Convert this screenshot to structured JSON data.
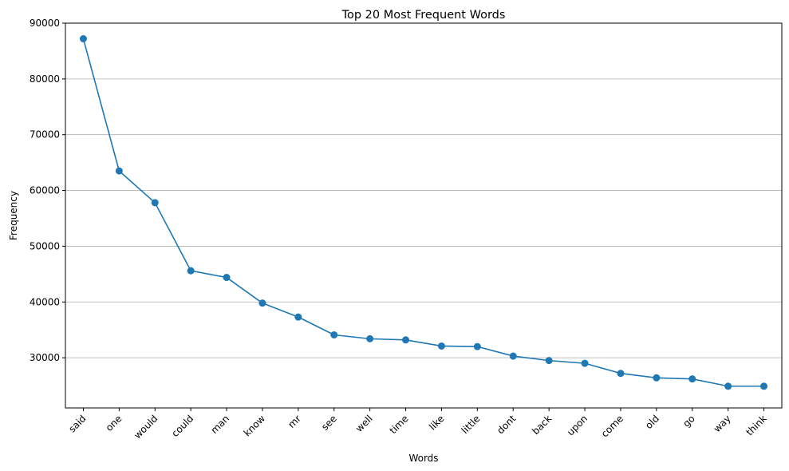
{
  "chart_data": {
    "type": "line",
    "title": "Top 20 Most Frequent Words",
    "xlabel": "Words",
    "ylabel": "Frequency",
    "categories": [
      "said",
      "one",
      "would",
      "could",
      "man",
      "know",
      "mr",
      "see",
      "well",
      "time",
      "like",
      "little",
      "dont",
      "back",
      "upon",
      "come",
      "old",
      "go",
      "way",
      "think"
    ],
    "series": [
      {
        "values": [
          87200,
          63500,
          57800,
          45600,
          44400,
          39800,
          37300,
          34100,
          33400,
          33200,
          32100,
          32000,
          30300,
          29500,
          29000,
          27200,
          26400,
          26200,
          24900,
          24900
        ],
        "color": "#1f77b4",
        "marker": "circle"
      }
    ],
    "ylim": [
      21000,
      90000
    ],
    "yticks": [
      30000,
      40000,
      50000,
      60000,
      70000,
      80000,
      90000
    ],
    "ytick_labels": [
      "30000",
      "40000",
      "50000",
      "60000",
      "70000",
      "80000",
      "90000"
    ],
    "grid": "y",
    "grid_color": "#b0b0b0",
    "x_tick_rotation": 45
  }
}
